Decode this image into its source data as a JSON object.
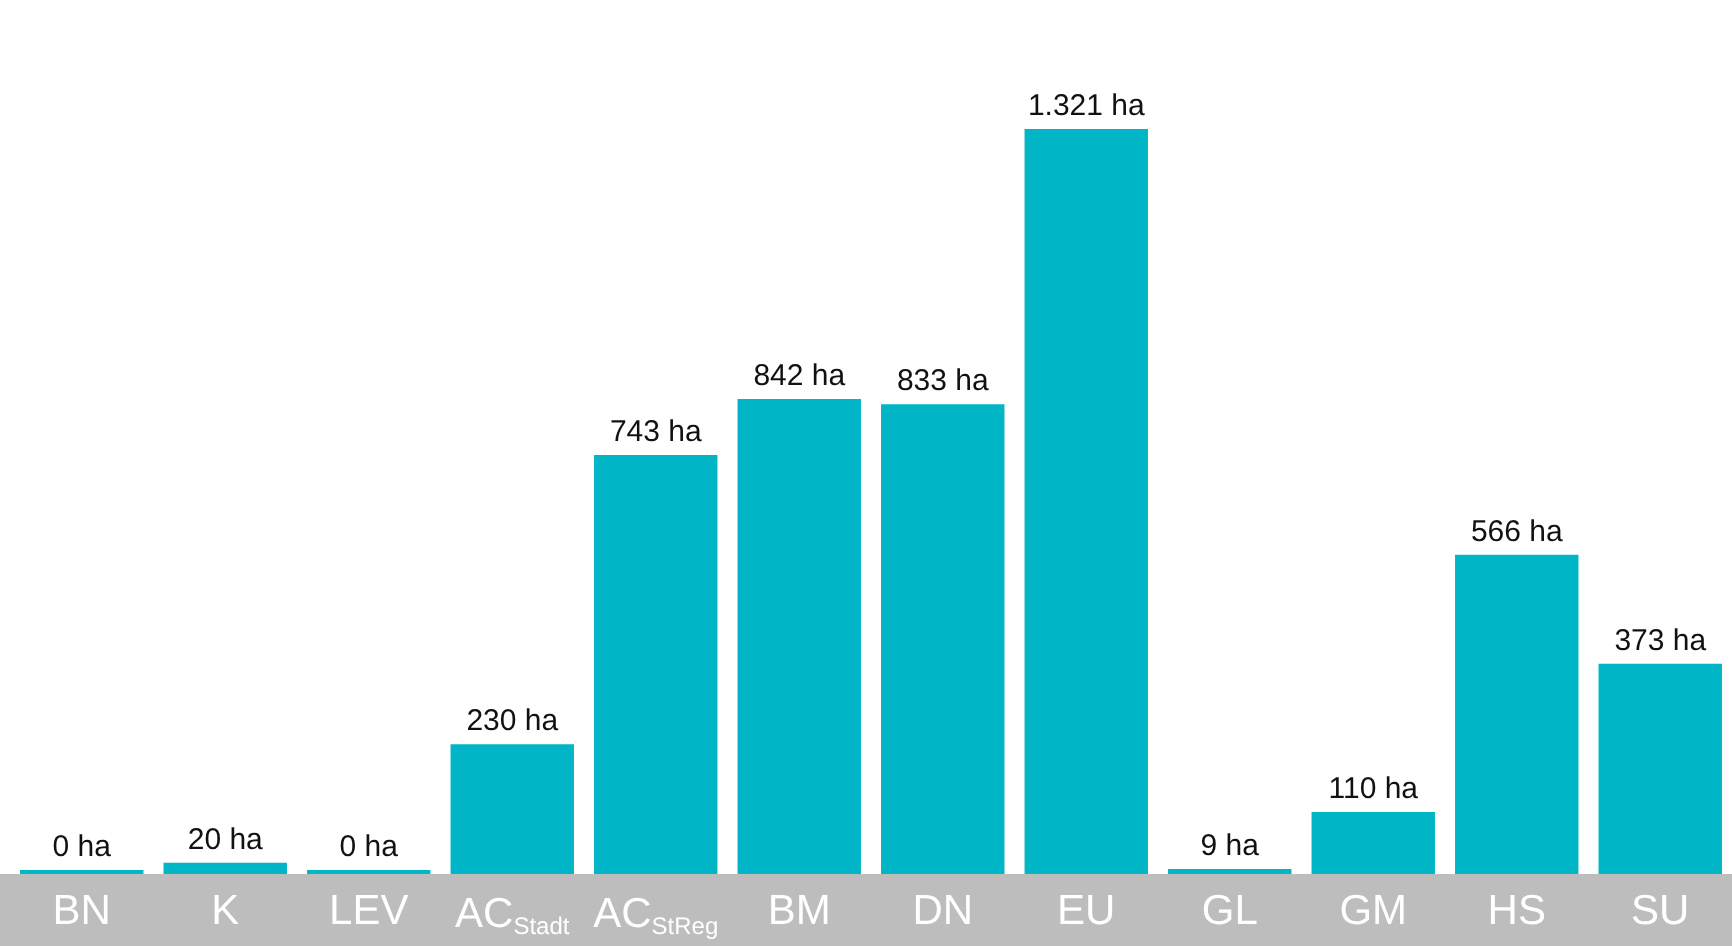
{
  "chart_data": {
    "type": "bar",
    "categories": [
      "BN",
      "K",
      "LEV",
      "AC$_{Stadt}$",
      "AC$_{StReg}$",
      "BM",
      "DN",
      "EU",
      "GL",
      "GM",
      "HS",
      "SU"
    ],
    "values": [
      0,
      20,
      0,
      230,
      743,
      842,
      833,
      1321,
      9,
      110,
      566,
      373
    ],
    "value_labels": [
      "0 ha",
      "20 ha",
      "0 ha",
      "230 ha",
      "743 ha",
      "842 ha",
      "833 ha",
      "1.321 ha",
      "9 ha",
      "110 ha",
      "566 ha",
      "373 ha"
    ],
    "color": "#00b5c6",
    "tick_labels": "x"
  }
}
